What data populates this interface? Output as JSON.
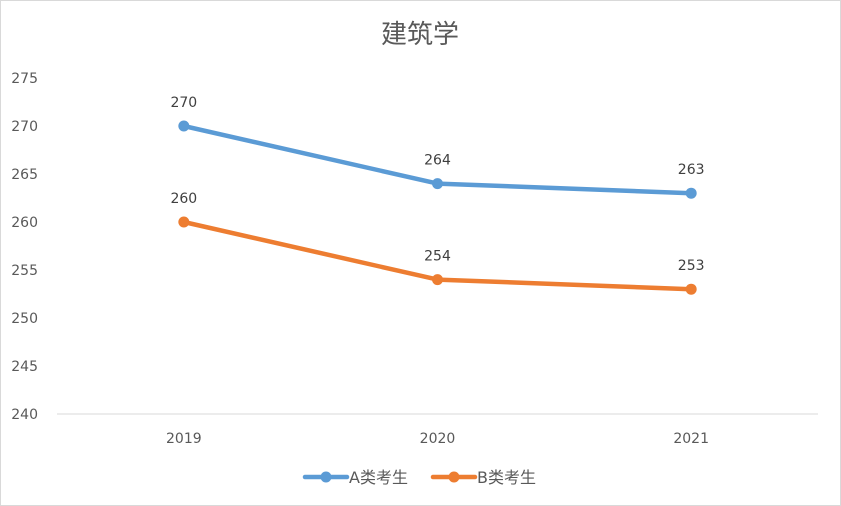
{
  "chart_data": {
    "type": "line",
    "title": "建筑学",
    "categories": [
      "2019",
      "2020",
      "2021"
    ],
    "series": [
      {
        "name": "A类考生",
        "values": [
          270,
          264,
          263
        ],
        "color": "#5B9BD5"
      },
      {
        "name": "B类考生",
        "values": [
          260,
          254,
          253
        ],
        "color": "#ED7D31"
      }
    ],
    "ylim": [
      240,
      275
    ],
    "yticks": [
      240,
      245,
      250,
      255,
      260,
      265,
      270,
      275
    ],
    "data_labels": true,
    "grid": false,
    "legend": "bottom"
  }
}
